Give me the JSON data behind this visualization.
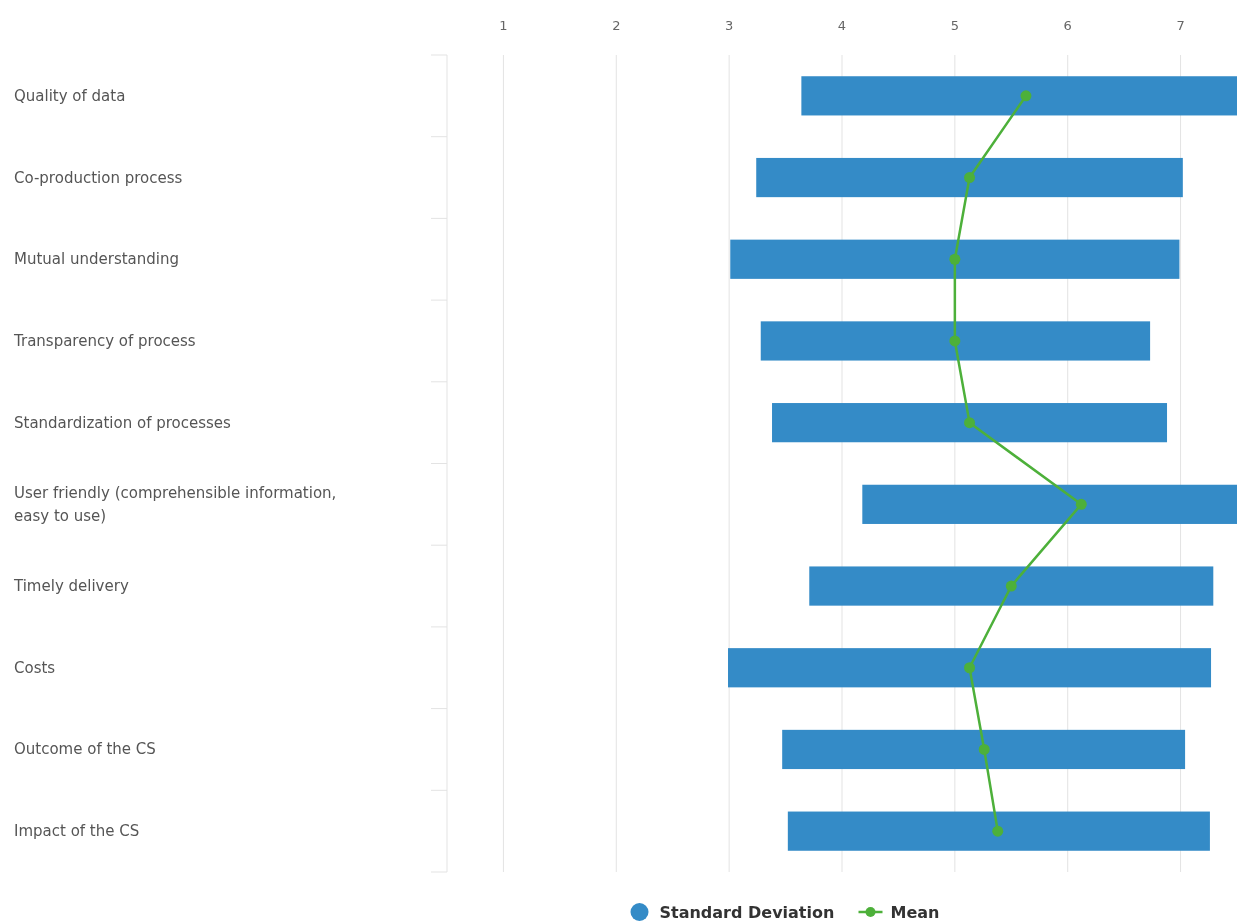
{
  "chart_data": {
    "type": "bar",
    "orientation": "horizontal",
    "categories": [
      "Quality of data",
      "Co-production process",
      "Mutual understanding",
      "Transparency of process",
      "Standardization of processes",
      "User friendly (comprehensible information, easy to use)",
      "Timely delivery",
      "Costs",
      "Outcome of the CS",
      "Impact of the CS"
    ],
    "series": [
      {
        "name": "Standard Deviation",
        "color": "#348bc7",
        "base": [
          3.64,
          3.24,
          3.01,
          3.28,
          3.38,
          4.18,
          3.71,
          2.99,
          3.47,
          3.52
        ],
        "values": [
          3.86,
          3.78,
          3.98,
          3.45,
          3.5,
          3.32,
          3.58,
          4.28,
          3.57,
          3.74
        ]
      },
      {
        "name": "Mean",
        "type": "line",
        "color": "#4db03a",
        "marker": "circle",
        "values": [
          5.63,
          5.13,
          5.0,
          5.0,
          5.13,
          6.12,
          5.5,
          5.13,
          5.26,
          5.38
        ]
      }
    ],
    "xlim": [
      0.5,
      7.5
    ],
    "xticks": [
      1,
      2,
      3,
      4,
      5,
      6,
      7
    ],
    "grid": "x",
    "legend": "bottom"
  }
}
